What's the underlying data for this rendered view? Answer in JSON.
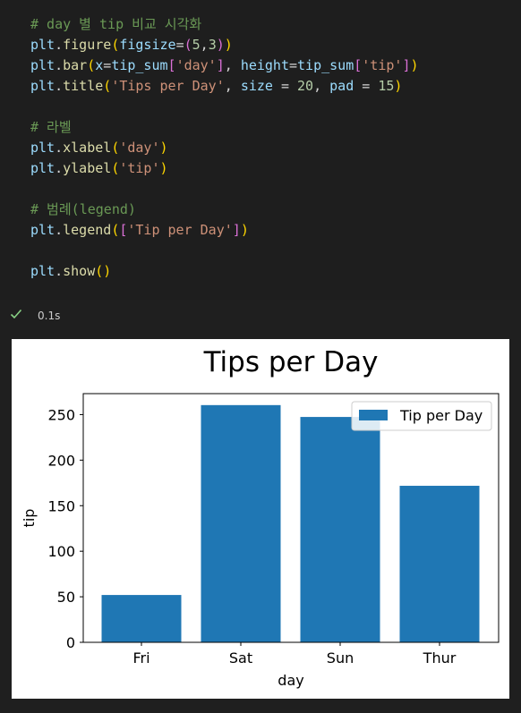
{
  "code_lines": [
    [
      {
        "t": "# day 별 tip 비교 시각화",
        "c": "c-comment"
      }
    ],
    [
      {
        "t": "plt",
        "c": "c-var"
      },
      {
        "t": ".",
        "c": "c-punc"
      },
      {
        "t": "figure",
        "c": "c-func"
      },
      {
        "t": "(",
        "c": "c-b1"
      },
      {
        "t": "figsize",
        "c": "c-param"
      },
      {
        "t": "=",
        "c": "c-punc"
      },
      {
        "t": "(",
        "c": "c-b2"
      },
      {
        "t": "5",
        "c": "c-num"
      },
      {
        "t": ",",
        "c": "c-punc"
      },
      {
        "t": "3",
        "c": "c-num"
      },
      {
        "t": ")",
        "c": "c-b2"
      },
      {
        "t": ")",
        "c": "c-b1"
      }
    ],
    [
      {
        "t": "plt",
        "c": "c-var"
      },
      {
        "t": ".",
        "c": "c-punc"
      },
      {
        "t": "bar",
        "c": "c-func"
      },
      {
        "t": "(",
        "c": "c-b1"
      },
      {
        "t": "x",
        "c": "c-param"
      },
      {
        "t": "=",
        "c": "c-punc"
      },
      {
        "t": "tip_sum",
        "c": "c-var"
      },
      {
        "t": "[",
        "c": "c-b2"
      },
      {
        "t": "'day'",
        "c": "c-str"
      },
      {
        "t": "]",
        "c": "c-b2"
      },
      {
        "t": ", ",
        "c": "c-punc"
      },
      {
        "t": "height",
        "c": "c-param"
      },
      {
        "t": "=",
        "c": "c-punc"
      },
      {
        "t": "tip_sum",
        "c": "c-var"
      },
      {
        "t": "[",
        "c": "c-b2"
      },
      {
        "t": "'tip'",
        "c": "c-str"
      },
      {
        "t": "]",
        "c": "c-b2"
      },
      {
        "t": ")",
        "c": "c-b1"
      }
    ],
    [
      {
        "t": "plt",
        "c": "c-var"
      },
      {
        "t": ".",
        "c": "c-punc"
      },
      {
        "t": "title",
        "c": "c-func"
      },
      {
        "t": "(",
        "c": "c-b1"
      },
      {
        "t": "'Tips per Day'",
        "c": "c-str"
      },
      {
        "t": ", ",
        "c": "c-punc"
      },
      {
        "t": "size",
        "c": "c-param"
      },
      {
        "t": " = ",
        "c": "c-punc"
      },
      {
        "t": "20",
        "c": "c-num"
      },
      {
        "t": ", ",
        "c": "c-punc"
      },
      {
        "t": "pad",
        "c": "c-param"
      },
      {
        "t": " = ",
        "c": "c-punc"
      },
      {
        "t": "15",
        "c": "c-num"
      },
      {
        "t": ")",
        "c": "c-b1"
      }
    ],
    [],
    [
      {
        "t": "# 라벨",
        "c": "c-comment"
      }
    ],
    [
      {
        "t": "plt",
        "c": "c-var"
      },
      {
        "t": ".",
        "c": "c-punc"
      },
      {
        "t": "xlabel",
        "c": "c-func"
      },
      {
        "t": "(",
        "c": "c-b1"
      },
      {
        "t": "'day'",
        "c": "c-str"
      },
      {
        "t": ")",
        "c": "c-b1"
      }
    ],
    [
      {
        "t": "plt",
        "c": "c-var"
      },
      {
        "t": ".",
        "c": "c-punc"
      },
      {
        "t": "ylabel",
        "c": "c-func"
      },
      {
        "t": "(",
        "c": "c-b1"
      },
      {
        "t": "'tip'",
        "c": "c-str"
      },
      {
        "t": ")",
        "c": "c-b1"
      }
    ],
    [],
    [
      {
        "t": "# 범례(legend)",
        "c": "c-comment"
      }
    ],
    [
      {
        "t": "plt",
        "c": "c-var"
      },
      {
        "t": ".",
        "c": "c-punc"
      },
      {
        "t": "legend",
        "c": "c-func"
      },
      {
        "t": "(",
        "c": "c-b1"
      },
      {
        "t": "[",
        "c": "c-b2"
      },
      {
        "t": "'Tip per Day'",
        "c": "c-str"
      },
      {
        "t": "]",
        "c": "c-b2"
      },
      {
        "t": ")",
        "c": "c-b1"
      }
    ],
    [],
    [
      {
        "t": "plt",
        "c": "c-var"
      },
      {
        "t": ".",
        "c": "c-punc"
      },
      {
        "t": "show",
        "c": "c-func"
      },
      {
        "t": "()",
        "c": "c-b1"
      }
    ]
  ],
  "status": {
    "icon": "check-icon",
    "exec_time": "0.1s",
    "success_color": "#89d185"
  },
  "chart_data": {
    "type": "bar",
    "title": "Tips per Day",
    "xlabel": "day",
    "ylabel": "tip",
    "categories": [
      "Fri",
      "Sat",
      "Sun",
      "Thur"
    ],
    "series": [
      {
        "name": "Tip per Day",
        "values": [
          51.96,
          260.4,
          247.39,
          171.83
        ],
        "color": "#1f77b4"
      }
    ],
    "ylim": [
      0,
      273
    ],
    "yticks": [
      0,
      50,
      100,
      150,
      200,
      250
    ],
    "legend_position": "top-right",
    "grid": false
  }
}
